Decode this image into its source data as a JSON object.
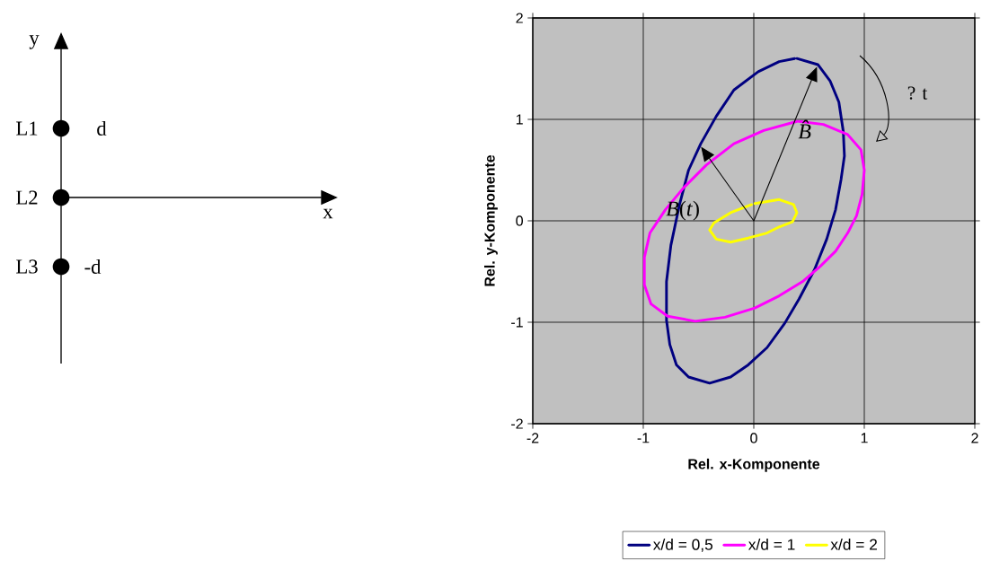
{
  "chart_data": [
    {
      "type": "other",
      "annotations": [
        "y",
        "x",
        "L1",
        "L2",
        "L3",
        "d",
        "-d"
      ]
    },
    {
      "type": "line",
      "xlabel": "Rel. x-Komponente",
      "ylabel": "Rel. y-Komponente",
      "xlim": [
        -2,
        2
      ],
      "ylim": [
        -2,
        2
      ],
      "xticks": [
        -2,
        -1,
        0,
        1,
        2
      ],
      "yticks": [
        -2,
        -1,
        0,
        1,
        2
      ],
      "grid": true,
      "legend": "bottom",
      "series": [
        {
          "name": "x/d = 0,5",
          "color": "#000080",
          "x": [
            0.39,
            0.58,
            0.69,
            0.77,
            0.81,
            0.82,
            0.79,
            0.74,
            0.66,
            0.55,
            0.41,
            0.28,
            0.12,
            -0.05,
            -0.21,
            -0.4,
            -0.59,
            -0.7,
            -0.76,
            -0.79,
            -0.79,
            -0.75,
            -0.67,
            -0.59,
            -0.48,
            -0.34,
            -0.18,
            0.04,
            0.23,
            0.37
          ],
          "values": [
            1.6,
            1.54,
            1.38,
            1.17,
            0.88,
            0.64,
            0.41,
            0.11,
            -0.18,
            -0.48,
            -0.77,
            -1.01,
            -1.25,
            -1.42,
            -1.54,
            -1.6,
            -1.54,
            -1.42,
            -1.22,
            -0.98,
            -0.6,
            -0.24,
            0.17,
            0.5,
            0.76,
            1.03,
            1.29,
            1.47,
            1.57,
            1.6
          ]
        },
        {
          "name": "x/d = 1",
          "color": "#ff00ff",
          "x": [
            0.41,
            0.63,
            0.85,
            0.97,
            1.0,
            0.98,
            0.93,
            0.85,
            0.74,
            0.6,
            0.44,
            0.23,
            0.01,
            -0.26,
            -0.53,
            -0.78,
            -0.93,
            -0.99,
            -0.99,
            -0.94,
            -0.8,
            -0.64,
            -0.43,
            -0.18,
            0.09,
            0.39
          ],
          "values": [
            0.98,
            0.95,
            0.85,
            0.7,
            0.5,
            0.26,
            0.05,
            -0.12,
            -0.3,
            -0.45,
            -0.6,
            -0.74,
            -0.86,
            -0.95,
            -0.99,
            -0.94,
            -0.82,
            -0.63,
            -0.36,
            -0.12,
            0.11,
            0.32,
            0.55,
            0.76,
            0.89,
            0.98
          ]
        },
        {
          "name": "x/d = 2",
          "color": "#ffff00",
          "x": [
            0.01,
            0.23,
            0.36,
            0.39,
            0.35,
            0.23,
            0.12,
            -0.05,
            -0.21,
            -0.34,
            -0.4,
            -0.36,
            -0.21,
            -0.02
          ],
          "values": [
            0.17,
            0.21,
            0.16,
            0.08,
            -0.01,
            -0.06,
            -0.12,
            -0.17,
            -0.21,
            -0.18,
            -0.09,
            -0.02,
            0.08,
            0.16
          ]
        }
      ],
      "annotations": [
        {
          "text": "*B*(*t*)",
          "x": -0.49,
          "y": 0.75
        },
        {
          "text": "B̂",
          "x": 0.58,
          "y": 1.54
        },
        "? t"
      ]
    }
  ]
}
